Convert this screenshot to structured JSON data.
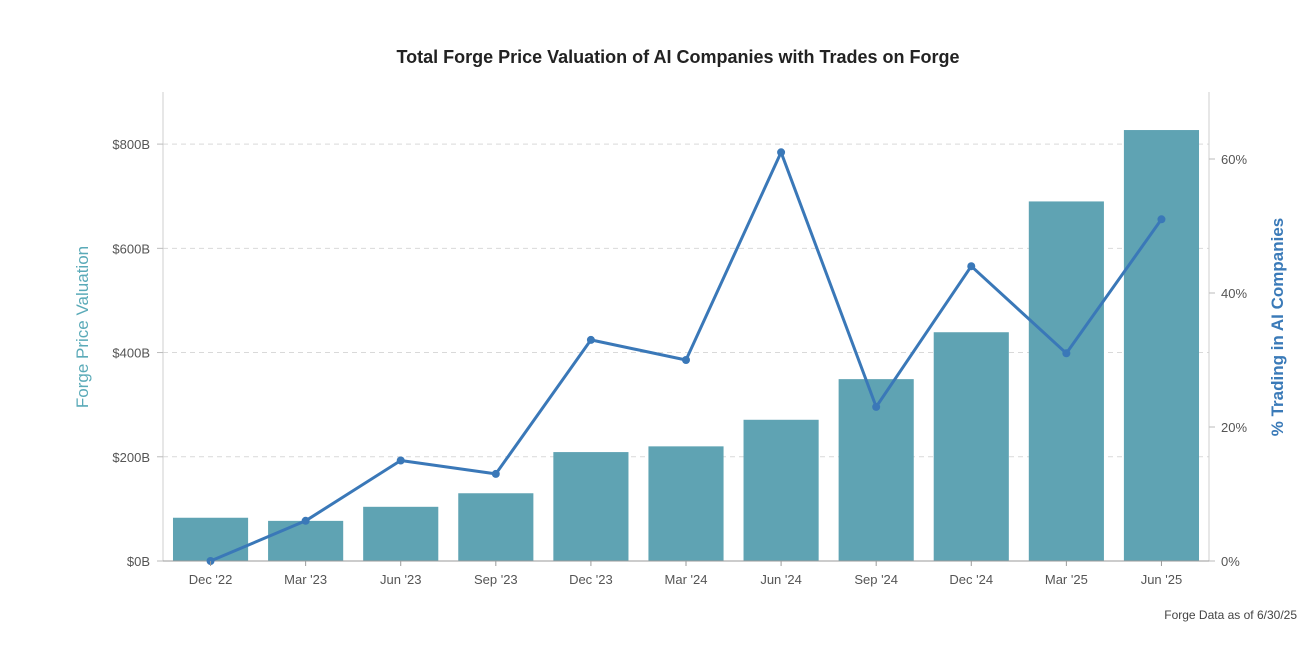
{
  "chart_data": {
    "type": "bar",
    "title": "Total Forge Price Valuation of AI Companies with Trades on Forge",
    "categories": [
      "Dec '22",
      "Mar '23",
      "Jun '23",
      "Sep '23",
      "Dec '23",
      "Mar '24",
      "Jun '24",
      "Sep '24",
      "Dec '24",
      "Mar '25",
      "Jun '25"
    ],
    "series": [
      {
        "type": "bar",
        "axis": "left",
        "color": "#5fa3b3",
        "values": [
          83,
          77,
          104,
          130,
          209,
          220,
          271,
          349,
          439,
          690,
          827
        ]
      },
      {
        "type": "line",
        "axis": "right",
        "color": "#3a78b8",
        "values": [
          0,
          6,
          15,
          13,
          33,
          30,
          61,
          23,
          44,
          31,
          51
        ]
      }
    ],
    "left_axis": {
      "label": "Forge Price Valuation",
      "ticks": [
        "$0B",
        "$200B",
        "$400B",
        "$600B",
        "$800B"
      ],
      "tick_values": [
        0,
        200,
        400,
        600,
        800
      ],
      "range": [
        0,
        900
      ],
      "unit": "$B"
    },
    "right_axis": {
      "label": "% Trading in AI Companies",
      "ticks": [
        "0%",
        "20%",
        "40%",
        "60%"
      ],
      "tick_values": [
        0,
        20,
        40,
        60
      ],
      "range": [
        0,
        70
      ],
      "unit": "%"
    },
    "grid": "horizontal dashed",
    "footnote": "Forge Data as of 6/30/25"
  }
}
